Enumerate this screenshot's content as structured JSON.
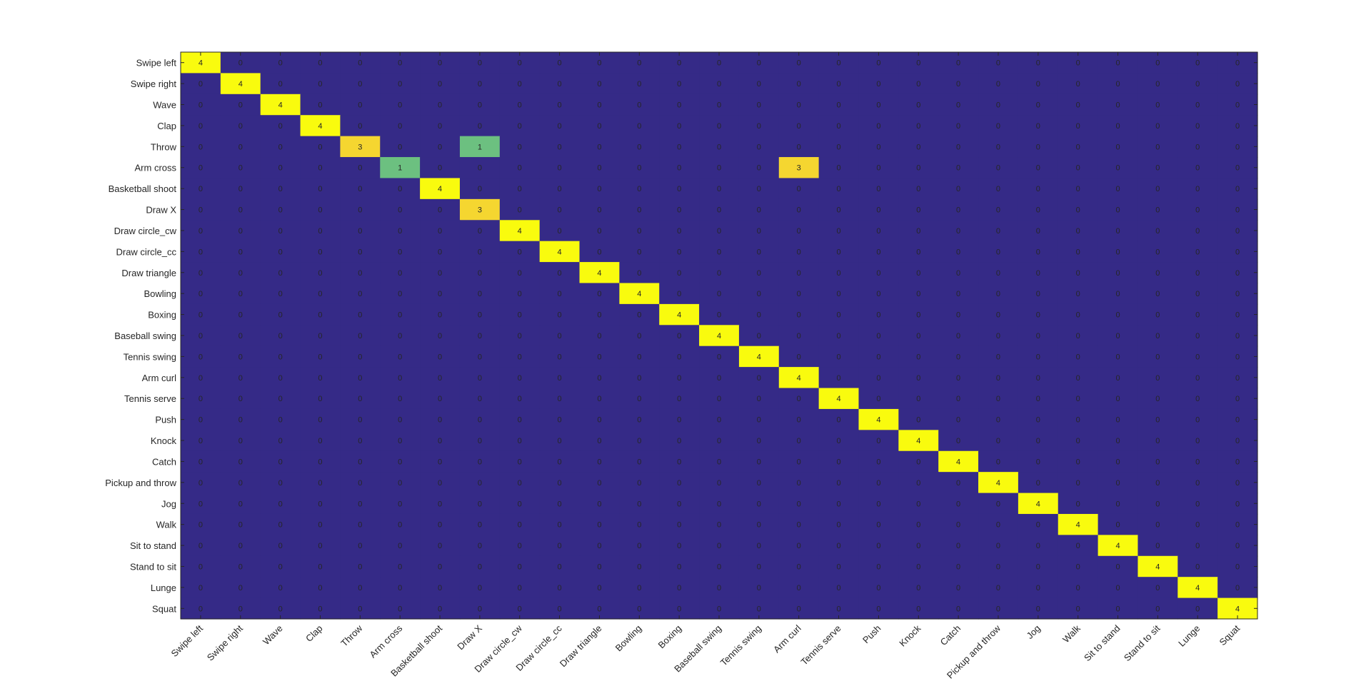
{
  "chart_data": {
    "type": "heatmap",
    "title": "",
    "xlabel": "",
    "ylabel": "",
    "categories": [
      "Swipe left",
      "Swipe right",
      "Wave",
      "Clap",
      "Throw",
      "Arm cross",
      "Basketball shoot",
      "Draw X",
      "Draw circle_cw",
      "Draw circle_cc",
      "Draw triangle",
      "Bowling",
      "Boxing",
      "Baseball swing",
      "Tennis swing",
      "Arm curl",
      "Tennis serve",
      "Push",
      "Knock",
      "Catch",
      "Pickup and throw",
      "Jog",
      "Walk",
      "Sit to stand",
      "Stand to sit",
      "Lunge",
      "Squat"
    ],
    "off_diagonal": [
      {
        "row": 4,
        "col": 7,
        "value": 1
      },
      {
        "row": 5,
        "col": 15,
        "value": 3
      }
    ],
    "diagonal": [
      4,
      4,
      4,
      4,
      3,
      1,
      4,
      3,
      4,
      4,
      4,
      4,
      4,
      4,
      4,
      4,
      4,
      4,
      4,
      4,
      4,
      4,
      4,
      4,
      4,
      4,
      4
    ],
    "value_range": [
      0,
      4
    ],
    "colormap": {
      "low": "#352a87",
      "mid": "#6cc080",
      "high_3": "#f5d630",
      "high_4": "#f9fb0e"
    }
  }
}
